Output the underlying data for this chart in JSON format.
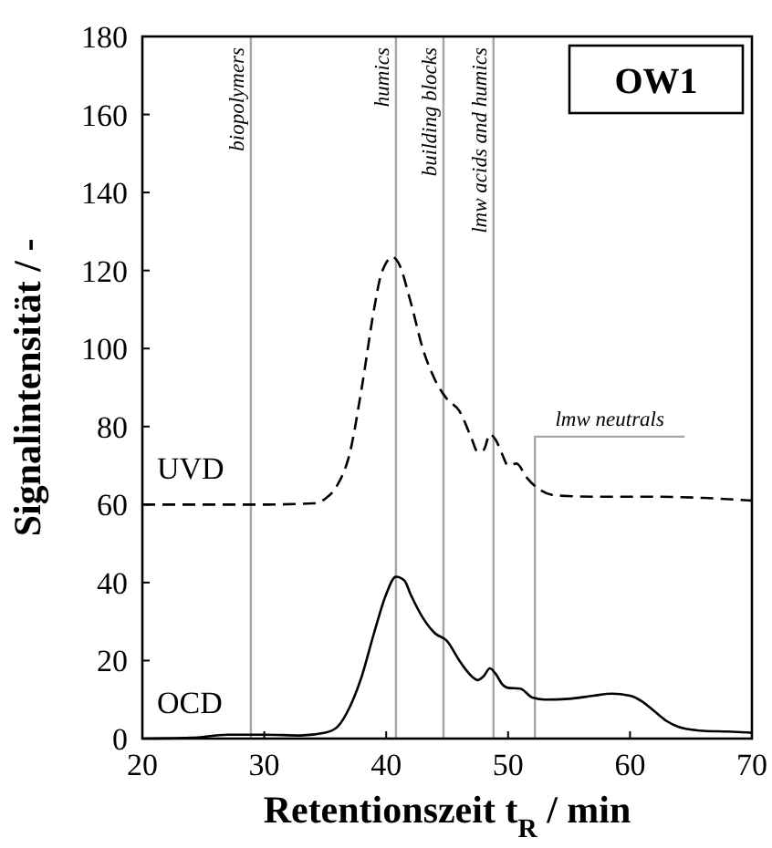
{
  "chart_data": {
    "type": "line",
    "xlabel": "Retentionszeit t$_{R}$ / min",
    "ylabel": "Signalintensität / -",
    "xlim": [
      20,
      70
    ],
    "xticks": [
      20,
      30,
      40,
      50,
      60,
      70
    ],
    "ylim": [
      0,
      180
    ],
    "yticks": [
      0,
      20,
      40,
      60,
      80,
      100,
      120,
      140,
      160,
      180
    ],
    "grid": false,
    "annotations": [
      "OW1"
    ],
    "ref_lines": [
      {
        "axis": "x",
        "value": 28.9,
        "label": "biopolymers",
        "color": "#a6a6a6"
      },
      {
        "axis": "x",
        "value": 40.8,
        "label": "humics",
        "color": "#a6a6a6"
      },
      {
        "axis": "x",
        "value": 44.7,
        "label": "building blocks",
        "color": "#a6a6a6"
      },
      {
        "axis": "x",
        "value": 48.8,
        "label": "lmw acids and humics",
        "color": "#a6a6a6"
      },
      {
        "axis": "x",
        "value": 52.2,
        "label": "lmw neutrals",
        "color": "#a6a6a6"
      }
    ],
    "series": [
      {
        "name": "UVD",
        "color": "#000000",
        "line_style": "dashed",
        "x": [
          20,
          30,
          34,
          35,
          36,
          37,
          38,
          39,
          39.5,
          40,
          40.5,
          41,
          42,
          43,
          44,
          45,
          46,
          47,
          47.5,
          48,
          48.5,
          49,
          49.5,
          50,
          50.7,
          51.5,
          52.5,
          54,
          58,
          62,
          66,
          70
        ],
        "values": [
          60,
          60,
          60.3,
          61.5,
          65,
          73,
          90,
          110,
          118,
          122,
          123.5,
          122,
          112,
          100,
          92,
          87,
          84,
          77,
          73.5,
          74,
          78,
          76.5,
          73,
          70,
          70.5,
          67,
          64,
          62.3,
          62,
          62,
          61.7,
          61
        ]
      },
      {
        "name": "OCD",
        "color": "#000000",
        "line_style": "solid",
        "x": [
          20,
          24,
          27,
          30,
          33,
          35,
          36,
          37,
          38,
          39,
          40,
          40.8,
          41.5,
          42,
          43,
          44,
          45,
          46,
          47,
          47.5,
          48,
          48.5,
          49,
          49.5,
          50,
          51,
          52,
          53,
          55,
          57,
          58.5,
          60,
          61,
          62,
          63,
          64,
          66,
          68,
          70
        ],
        "values": [
          0,
          0.2,
          1,
          1,
          0.8,
          1.5,
          3,
          8,
          16,
          27,
          37,
          41.5,
          40.5,
          37,
          31,
          27,
          25,
          20,
          16,
          15,
          16,
          18,
          16.5,
          14,
          13,
          12.8,
          10.5,
          10,
          10.2,
          11,
          11.5,
          11,
          9.5,
          7,
          4.5,
          3,
          2,
          1.8,
          1.5
        ]
      }
    ]
  }
}
